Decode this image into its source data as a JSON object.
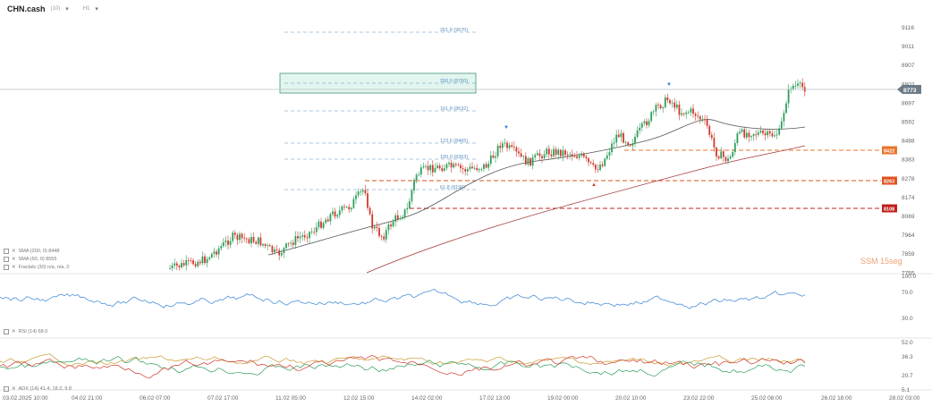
{
  "header": {
    "symbol": "CHN.cash",
    "symbol_sub": "(10)",
    "timeframe": "H1"
  },
  "price_axis": [
    "9116",
    "9011",
    "8907",
    "8802",
    "8697",
    "8592",
    "8488",
    "8383",
    "8278",
    "8174",
    "8069",
    "7964",
    "7859",
    "7755"
  ],
  "current_price": "8773",
  "level_tags": [
    {
      "label": "8422",
      "y": 168,
      "color": "#e8742a"
    },
    {
      "label": "8263",
      "y": 202,
      "color": "#e0521e"
    },
    {
      "label": "8108",
      "y": 233,
      "color": "#c0201c"
    }
  ],
  "fib_levels": [
    {
      "label": "261.8 (9070)"
    },
    {
      "label": "200.0 (8760)"
    },
    {
      "label": "161.8 (8632)"
    },
    {
      "label": "123.6 (8465)"
    },
    {
      "label": "100.0 (8363)"
    },
    {
      "label": "61.8 (8196)"
    }
  ],
  "indicators": {
    "sma200": "SMA (200, 0) 8448",
    "sma50": "SMA (50, 0) 8555",
    "fractals": "Fractals (30) n/a, n/a, 0",
    "rsi": "RSI (14) 68.0",
    "adx": "ADX (14) 41.4, 18.3, 9.8"
  },
  "rsi_axis": [
    "100.0",
    "70.0",
    "30.0"
  ],
  "adx_axis": [
    "52.0",
    "36.3",
    "20.7",
    "5.1"
  ],
  "time_axis": [
    "03.02.2025 10:00",
    "04.02 21:00",
    "06.02 07:00",
    "07.02 17:00",
    "11.02 05:00",
    "12.02 15:00",
    "14.02 02:00",
    "17.02 13:00",
    "19.02 00:00",
    "20.02 10:00",
    "23.02 22:00",
    "25.02 08:00",
    "26.02 18:00",
    "28.02 03:00"
  ],
  "watermark": "SSM 15seg",
  "colors": {
    "bull": "#2e9e5b",
    "bear": "#d0392b",
    "sma50": "#555555",
    "sma200": "#a53a3a",
    "rsi": "#4a90d9",
    "fib": "#5b8fbf"
  }
}
